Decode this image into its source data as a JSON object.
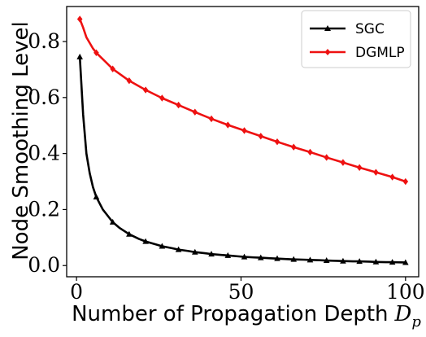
{
  "chart_data": {
    "type": "line",
    "xlabel": "Number of Propagation Depth",
    "xlabel_math_base": "D",
    "xlabel_math_sub": "p",
    "ylabel": "Node Smoothing Level",
    "xlim": [
      -3,
      104
    ],
    "ylim": [
      -0.04,
      0.925
    ],
    "xticks": [
      0,
      50,
      100
    ],
    "yticks": [
      0.0,
      0.2,
      0.4,
      0.6,
      0.8
    ],
    "ytick_labels": [
      "0.0",
      "0.2",
      "0.4",
      "0.6",
      "0.8"
    ],
    "grid": false,
    "legend_position": "top-right",
    "series": [
      {
        "name": "SGC",
        "color": "#000000",
        "marker": "triangle",
        "x": [
          1,
          2,
          3,
          4,
          5,
          6,
          8,
          10,
          11,
          13,
          16,
          19,
          21,
          24,
          26,
          29,
          31,
          34,
          36,
          39,
          41,
          44,
          46,
          49,
          51,
          54,
          56,
          59,
          61,
          64,
          66,
          69,
          71,
          74,
          76,
          79,
          81,
          84,
          86,
          89,
          91,
          94,
          96,
          100
        ],
        "y": [
          0.745,
          0.54,
          0.4,
          0.33,
          0.28,
          0.245,
          0.2,
          0.17,
          0.155,
          0.135,
          0.112,
          0.095,
          0.086,
          0.076,
          0.069,
          0.062,
          0.057,
          0.052,
          0.048,
          0.044,
          0.041,
          0.038,
          0.036,
          0.033,
          0.031,
          0.029,
          0.028,
          0.026,
          0.025,
          0.023,
          0.022,
          0.021,
          0.02,
          0.019,
          0.018,
          0.017,
          0.016,
          0.015,
          0.015,
          0.014,
          0.013,
          0.012,
          0.012,
          0.011
        ],
        "marker_x": [
          1,
          6,
          11,
          16,
          21,
          26,
          31,
          36,
          41,
          46,
          51,
          56,
          61,
          66,
          71,
          76,
          81,
          86,
          91,
          96,
          100
        ]
      },
      {
        "name": "DGMLP",
        "color": "#ee1111",
        "marker": "diamond",
        "x": [
          1,
          2,
          3,
          4,
          5,
          6,
          11,
          16,
          21,
          26,
          31,
          36,
          41,
          46,
          51,
          56,
          61,
          66,
          71,
          76,
          81,
          86,
          91,
          96,
          100
        ],
        "y": [
          0.88,
          0.85,
          0.815,
          0.795,
          0.775,
          0.76,
          0.702,
          0.66,
          0.627,
          0.598,
          0.573,
          0.548,
          0.524,
          0.502,
          0.482,
          0.462,
          0.442,
          0.423,
          0.405,
          0.386,
          0.368,
          0.35,
          0.333,
          0.316,
          0.3
        ],
        "marker_x": [
          1,
          6,
          11,
          16,
          21,
          26,
          31,
          36,
          41,
          46,
          51,
          56,
          61,
          66,
          71,
          76,
          81,
          86,
          91,
          96,
          100
        ]
      }
    ]
  }
}
